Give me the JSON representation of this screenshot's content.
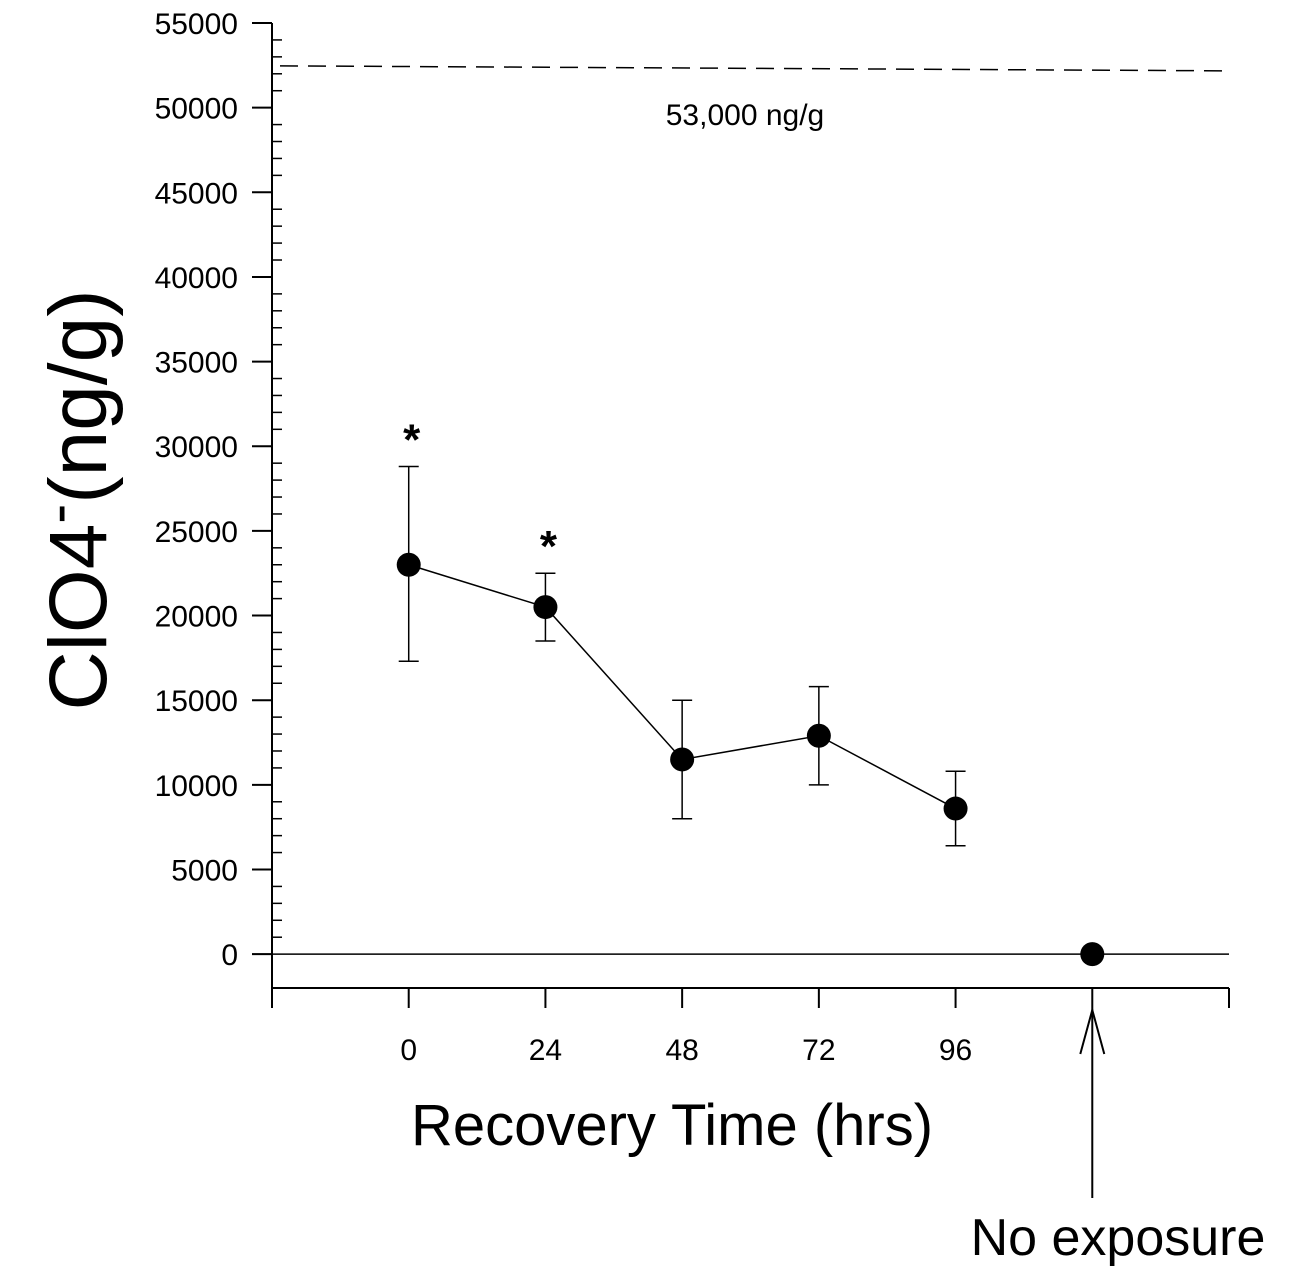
{
  "chart_data": {
    "type": "scatter",
    "xlabel": "Recovery Time (hrs)",
    "ylabel": "ClO4",
    "ylabel_superscript": "-",
    "ylabel_suffix": "(ng/g)",
    "ylim": [
      -2000,
      55000
    ],
    "yticks": [
      0,
      5000,
      10000,
      15000,
      20000,
      25000,
      30000,
      35000,
      40000,
      45000,
      50000,
      55000
    ],
    "ytick_labels": [
      "0",
      "5000",
      "10000",
      "15000",
      "20000",
      "25000",
      "30000",
      "35000",
      "40000",
      "45000",
      "50000",
      "55000"
    ],
    "xlim": [
      -24,
      144
    ],
    "xticks": [
      0,
      24,
      48,
      72,
      96
    ],
    "xtick_labels": [
      "0",
      "24",
      "48",
      "72",
      "96"
    ],
    "grid": false,
    "series": [
      {
        "x": [
          0,
          24,
          48,
          72,
          96
        ],
        "y": [
          23000,
          20500,
          11500,
          12900,
          8600
        ],
        "error_upper": [
          28800,
          22500,
          15000,
          15800,
          10800
        ],
        "error_lower": [
          17300,
          18500,
          8000,
          10000,
          6400
        ],
        "significance": [
          "*",
          "*",
          "",
          "",
          ""
        ]
      },
      {
        "x": [
          120
        ],
        "y": [
          0
        ]
      }
    ],
    "reference_line": {
      "value": 53000,
      "label": "53,000 ng/g"
    },
    "annotation": {
      "text": "No exposure",
      "x": 120
    }
  }
}
